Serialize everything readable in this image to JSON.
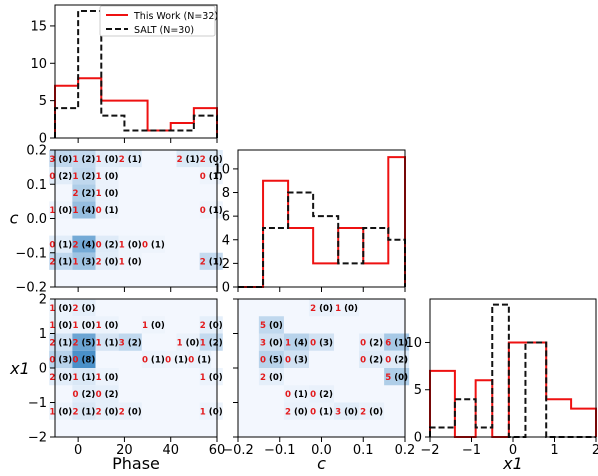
{
  "colors": {
    "this_work": "#ee1111",
    "salt": "#111111",
    "cell_base": "#f3f7fe",
    "cell_dark": "#4a90c8",
    "count_red": "#e31a1c",
    "count_black": "#000000"
  },
  "chart_data": [
    {
      "id": "hist-phase",
      "type": "histogram",
      "bin_edges": [
        -10,
        0,
        10,
        20,
        30,
        40,
        50,
        60
      ],
      "series": [
        {
          "name": "This Work (N=32)",
          "values": [
            7,
            8,
            5,
            5,
            1,
            2,
            4
          ]
        },
        {
          "name": "SALT (N=30)",
          "values": [
            4,
            17,
            3,
            1,
            1,
            1,
            3
          ]
        }
      ],
      "xlim": [
        -10,
        60
      ],
      "ylim": [
        0,
        17.8
      ],
      "yticks": [
        "0",
        "5",
        "10",
        "15"
      ],
      "legend": "top-right"
    },
    {
      "id": "hist-c",
      "type": "histogram",
      "bin_edges": [
        -0.2,
        -0.14,
        -0.08,
        -0.02,
        0.04,
        0.1,
        0.16,
        0.2
      ],
      "series": [
        {
          "name": "This Work",
          "values": [
            0,
            9,
            5,
            2,
            5,
            2,
            11
          ]
        },
        {
          "name": "SALT",
          "values": [
            0,
            5,
            8,
            6,
            2,
            5,
            4
          ]
        }
      ],
      "xlim": [
        -0.2,
        0.2
      ],
      "ylim": [
        0,
        11.6
      ],
      "yticks": [
        "0",
        "2",
        "4",
        "6",
        "8",
        "10"
      ]
    },
    {
      "id": "hist-x1",
      "type": "histogram",
      "bin_edges": [
        -2,
        -1.4,
        -0.9,
        -0.5,
        -0.1,
        0.3,
        0.8,
        1.4,
        2
      ],
      "series": [
        {
          "name": "This Work",
          "values": [
            7,
            0,
            6,
            0,
            10,
            10,
            4,
            3
          ]
        },
        {
          "name": "SALT",
          "values": [
            1,
            4,
            1,
            14,
            0,
            10,
            0,
            0
          ]
        }
      ],
      "xlim": [
        -2,
        2
      ],
      "ylim": [
        0,
        14.6
      ],
      "yticks": [
        "0",
        "5",
        "10"
      ],
      "xticks": [
        "−2",
        "−1",
        "0",
        "1",
        "2"
      ],
      "xlabel": "x1"
    },
    {
      "id": "heat-c-phase",
      "type": "heatmap",
      "xlim": [
        -10,
        60
      ],
      "ylim": [
        -0.2,
        0.2
      ],
      "yticks": [
        "−0.2",
        "−0.1",
        "0.0",
        "0.1",
        "0.2"
      ],
      "ylabel": "c",
      "cells": [
        {
          "x": -7.5,
          "y": 0.175,
          "a": "3",
          "b": "(0)",
          "shade": 0.3
        },
        {
          "x": 2.5,
          "y": 0.175,
          "a": "1",
          "b": "(2)",
          "shade": 0.28
        },
        {
          "x": 12.5,
          "y": 0.175,
          "a": "1",
          "b": "(0)",
          "shade": 0.1
        },
        {
          "x": 22.5,
          "y": 0.175,
          "a": "2",
          "b": "(1)",
          "shade": 0.12
        },
        {
          "x": 47.5,
          "y": 0.175,
          "a": "2",
          "b": "(1)",
          "shade": 0.14
        },
        {
          "x": 57.5,
          "y": 0.175,
          "a": "2",
          "b": "(0)",
          "shade": 0.12
        },
        {
          "x": -7.5,
          "y": 0.125,
          "a": "0",
          "b": "(2)",
          "shade": 0.1
        },
        {
          "x": 2.5,
          "y": 0.125,
          "a": "1",
          "b": "(2)",
          "shade": 0.3
        },
        {
          "x": 12.5,
          "y": 0.125,
          "a": "1",
          "b": "(0)",
          "shade": 0.05
        },
        {
          "x": 57.5,
          "y": 0.125,
          "a": "0",
          "b": "(1)",
          "shade": 0.03
        },
        {
          "x": 2.5,
          "y": 0.075,
          "a": "2",
          "b": "(2)",
          "shade": 0.4
        },
        {
          "x": 12.5,
          "y": 0.075,
          "a": "1",
          "b": "(0)",
          "shade": 0.05
        },
        {
          "x": -7.5,
          "y": 0.025,
          "a": "1",
          "b": "(0)",
          "shade": 0.03
        },
        {
          "x": 2.5,
          "y": 0.025,
          "a": "1",
          "b": "(4)",
          "shade": 0.55
        },
        {
          "x": 12.5,
          "y": 0.025,
          "a": "0",
          "b": "(1)",
          "shade": 0.05
        },
        {
          "x": 57.5,
          "y": 0.025,
          "a": "0",
          "b": "(1)",
          "shade": 0.03
        },
        {
          "x": -7.5,
          "y": -0.075,
          "a": "0",
          "b": "(1)",
          "shade": 0.1
        },
        {
          "x": 2.5,
          "y": -0.075,
          "a": "2",
          "b": "(4)",
          "shade": 0.75
        },
        {
          "x": 12.5,
          "y": -0.075,
          "a": "0",
          "b": "(2)",
          "shade": 0.12
        },
        {
          "x": 22.5,
          "y": -0.075,
          "a": "1",
          "b": "(0)",
          "shade": 0.03
        },
        {
          "x": 32.5,
          "y": -0.075,
          "a": "0",
          "b": "(1)",
          "shade": 0.03
        },
        {
          "x": -7.5,
          "y": -0.125,
          "a": "2",
          "b": "(1)",
          "shade": 0.3
        },
        {
          "x": 2.5,
          "y": -0.125,
          "a": "1",
          "b": "(3)",
          "shade": 0.5
        },
        {
          "x": 12.5,
          "y": -0.125,
          "a": "2",
          "b": "(0)",
          "shade": 0.1
        },
        {
          "x": 22.5,
          "y": -0.125,
          "a": "1",
          "b": "(0)",
          "shade": 0.03
        },
        {
          "x": 57.5,
          "y": -0.125,
          "a": "2",
          "b": "(1)",
          "shade": 0.28
        }
      ]
    },
    {
      "id": "heat-x1-phase",
      "type": "heatmap",
      "xlim": [
        -10,
        60
      ],
      "ylim": [
        -2,
        2
      ],
      "yticks": [
        "−2",
        "−1",
        "0",
        "1",
        "2"
      ],
      "xticks": [
        "0",
        "20",
        "40",
        "60"
      ],
      "xlabel": "Phase",
      "ylabel": "x1",
      "cells": [
        {
          "x": -7.5,
          "y": 1.75,
          "a": "1",
          "b": "(0)",
          "shade": 0.04
        },
        {
          "x": 2.5,
          "y": 1.75,
          "a": "2",
          "b": "(0)",
          "shade": 0.08
        },
        {
          "x": -7.5,
          "y": 1.25,
          "a": "1",
          "b": "(0)",
          "shade": 0.04
        },
        {
          "x": 2.5,
          "y": 1.25,
          "a": "1",
          "b": "(0)",
          "shade": 0.05
        },
        {
          "x": 12.5,
          "y": 1.25,
          "a": "1",
          "b": "(0)",
          "shade": 0.04
        },
        {
          "x": 32.5,
          "y": 1.25,
          "a": "1",
          "b": "(0)",
          "shade": 0.03
        },
        {
          "x": 57.5,
          "y": 1.25,
          "a": "2",
          "b": "(0)",
          "shade": 0.08
        },
        {
          "x": -7.5,
          "y": 0.75,
          "a": "2",
          "b": "(1)",
          "shade": 0.2
        },
        {
          "x": 2.5,
          "y": 0.75,
          "a": "2",
          "b": "(5)",
          "shade": 0.8
        },
        {
          "x": 12.5,
          "y": 0.75,
          "a": "1",
          "b": "(1)",
          "shade": 0.18
        },
        {
          "x": 22.5,
          "y": 0.75,
          "a": "3",
          "b": "(2)",
          "shade": 0.3
        },
        {
          "x": 47.5,
          "y": 0.75,
          "a": "1",
          "b": "(0)",
          "shade": 0.05
        },
        {
          "x": 57.5,
          "y": 0.75,
          "a": "1",
          "b": "(2)",
          "shade": 0.28
        },
        {
          "x": -7.5,
          "y": 0.25,
          "a": "0",
          "b": "(3)",
          "shade": 0.35
        },
        {
          "x": 2.5,
          "y": 0.25,
          "a": "0",
          "b": "(8)",
          "shade": 1.0
        },
        {
          "x": 32.5,
          "y": 0.25,
          "a": "0",
          "b": "(1)",
          "shade": 0.04
        },
        {
          "x": 42.5,
          "y": 0.25,
          "a": "0",
          "b": "(1)",
          "shade": 0.03
        },
        {
          "x": 52.5,
          "y": 0.25,
          "a": "0",
          "b": "(1)",
          "shade": 0.06
        },
        {
          "x": -7.5,
          "y": -0.25,
          "a": "2",
          "b": "(0)",
          "shade": 0.1
        },
        {
          "x": 2.5,
          "y": -0.25,
          "a": "1",
          "b": "(1)",
          "shade": 0.15
        },
        {
          "x": 12.5,
          "y": -0.25,
          "a": "1",
          "b": "(0)",
          "shade": 0.04
        },
        {
          "x": 57.5,
          "y": -0.25,
          "a": "1",
          "b": "(0)",
          "shade": 0.04
        },
        {
          "x": 2.5,
          "y": -0.75,
          "a": "0",
          "b": "(2)",
          "shade": 0.1
        },
        {
          "x": 12.5,
          "y": -0.75,
          "a": "0",
          "b": "(2)",
          "shade": 0.08
        },
        {
          "x": -7.5,
          "y": -1.25,
          "a": "1",
          "b": "(0)",
          "shade": 0.04
        },
        {
          "x": 2.5,
          "y": -1.25,
          "a": "2",
          "b": "(1)",
          "shade": 0.15
        },
        {
          "x": 12.5,
          "y": -1.25,
          "a": "2",
          "b": "(0)",
          "shade": 0.08
        },
        {
          "x": 22.5,
          "y": -1.25,
          "a": "2",
          "b": "(0)",
          "shade": 0.06
        },
        {
          "x": 57.5,
          "y": -1.25,
          "a": "1",
          "b": "(0)",
          "shade": 0.04
        }
      ]
    },
    {
      "id": "heat-x1-c",
      "type": "heatmap",
      "xlim": [
        -0.2,
        0.2
      ],
      "ylim": [
        -2,
        2
      ],
      "xticks": [
        "−0.2",
        "−0.1",
        "0.0",
        "0.1",
        "0.2"
      ],
      "xlabel": "c",
      "cells": [
        {
          "x": 0.0,
          "y": 1.75,
          "a": "2",
          "b": "(0)",
          "shade": 0.06
        },
        {
          "x": 0.06,
          "y": 1.75,
          "a": "1",
          "b": "(0)",
          "shade": 0.04
        },
        {
          "x": -0.12,
          "y": 1.25,
          "a": "5",
          "b": "(0)",
          "shade": 0.3
        },
        {
          "x": -0.12,
          "y": 0.75,
          "a": "3",
          "b": "(0)",
          "shade": 0.2
        },
        {
          "x": -0.06,
          "y": 0.75,
          "a": "1",
          "b": "(4)",
          "shade": 0.35
        },
        {
          "x": 0.0,
          "y": 0.75,
          "a": "0",
          "b": "(3)",
          "shade": 0.2
        },
        {
          "x": 0.12,
          "y": 0.75,
          "a": "0",
          "b": "(2)",
          "shade": 0.1
        },
        {
          "x": 0.18,
          "y": 0.75,
          "a": "6",
          "b": "(1)",
          "shade": 0.45
        },
        {
          "x": -0.12,
          "y": 0.25,
          "a": "0",
          "b": "(5)",
          "shade": 0.35
        },
        {
          "x": -0.06,
          "y": 0.25,
          "a": "0",
          "b": "(3)",
          "shade": 0.2
        },
        {
          "x": 0.12,
          "y": 0.25,
          "a": "0",
          "b": "(2)",
          "shade": 0.12
        },
        {
          "x": 0.18,
          "y": 0.25,
          "a": "0",
          "b": "(2)",
          "shade": 0.12
        },
        {
          "x": -0.12,
          "y": -0.25,
          "a": "2",
          "b": "(0)",
          "shade": 0.08
        },
        {
          "x": 0.18,
          "y": -0.25,
          "a": "5",
          "b": "(0)",
          "shade": 0.4
        },
        {
          "x": -0.06,
          "y": -0.75,
          "a": "0",
          "b": "(1)",
          "shade": 0.04
        },
        {
          "x": 0.0,
          "y": -0.75,
          "a": "0",
          "b": "(2)",
          "shade": 0.06
        },
        {
          "x": -0.06,
          "y": -1.25,
          "a": "2",
          "b": "(0)",
          "shade": 0.06
        },
        {
          "x": 0.0,
          "y": -1.25,
          "a": "0",
          "b": "(1)",
          "shade": 0.04
        },
        {
          "x": 0.06,
          "y": -1.25,
          "a": "3",
          "b": "(0)",
          "shade": 0.1
        },
        {
          "x": 0.12,
          "y": -1.25,
          "a": "2",
          "b": "(0)",
          "shade": 0.06
        }
      ]
    }
  ]
}
